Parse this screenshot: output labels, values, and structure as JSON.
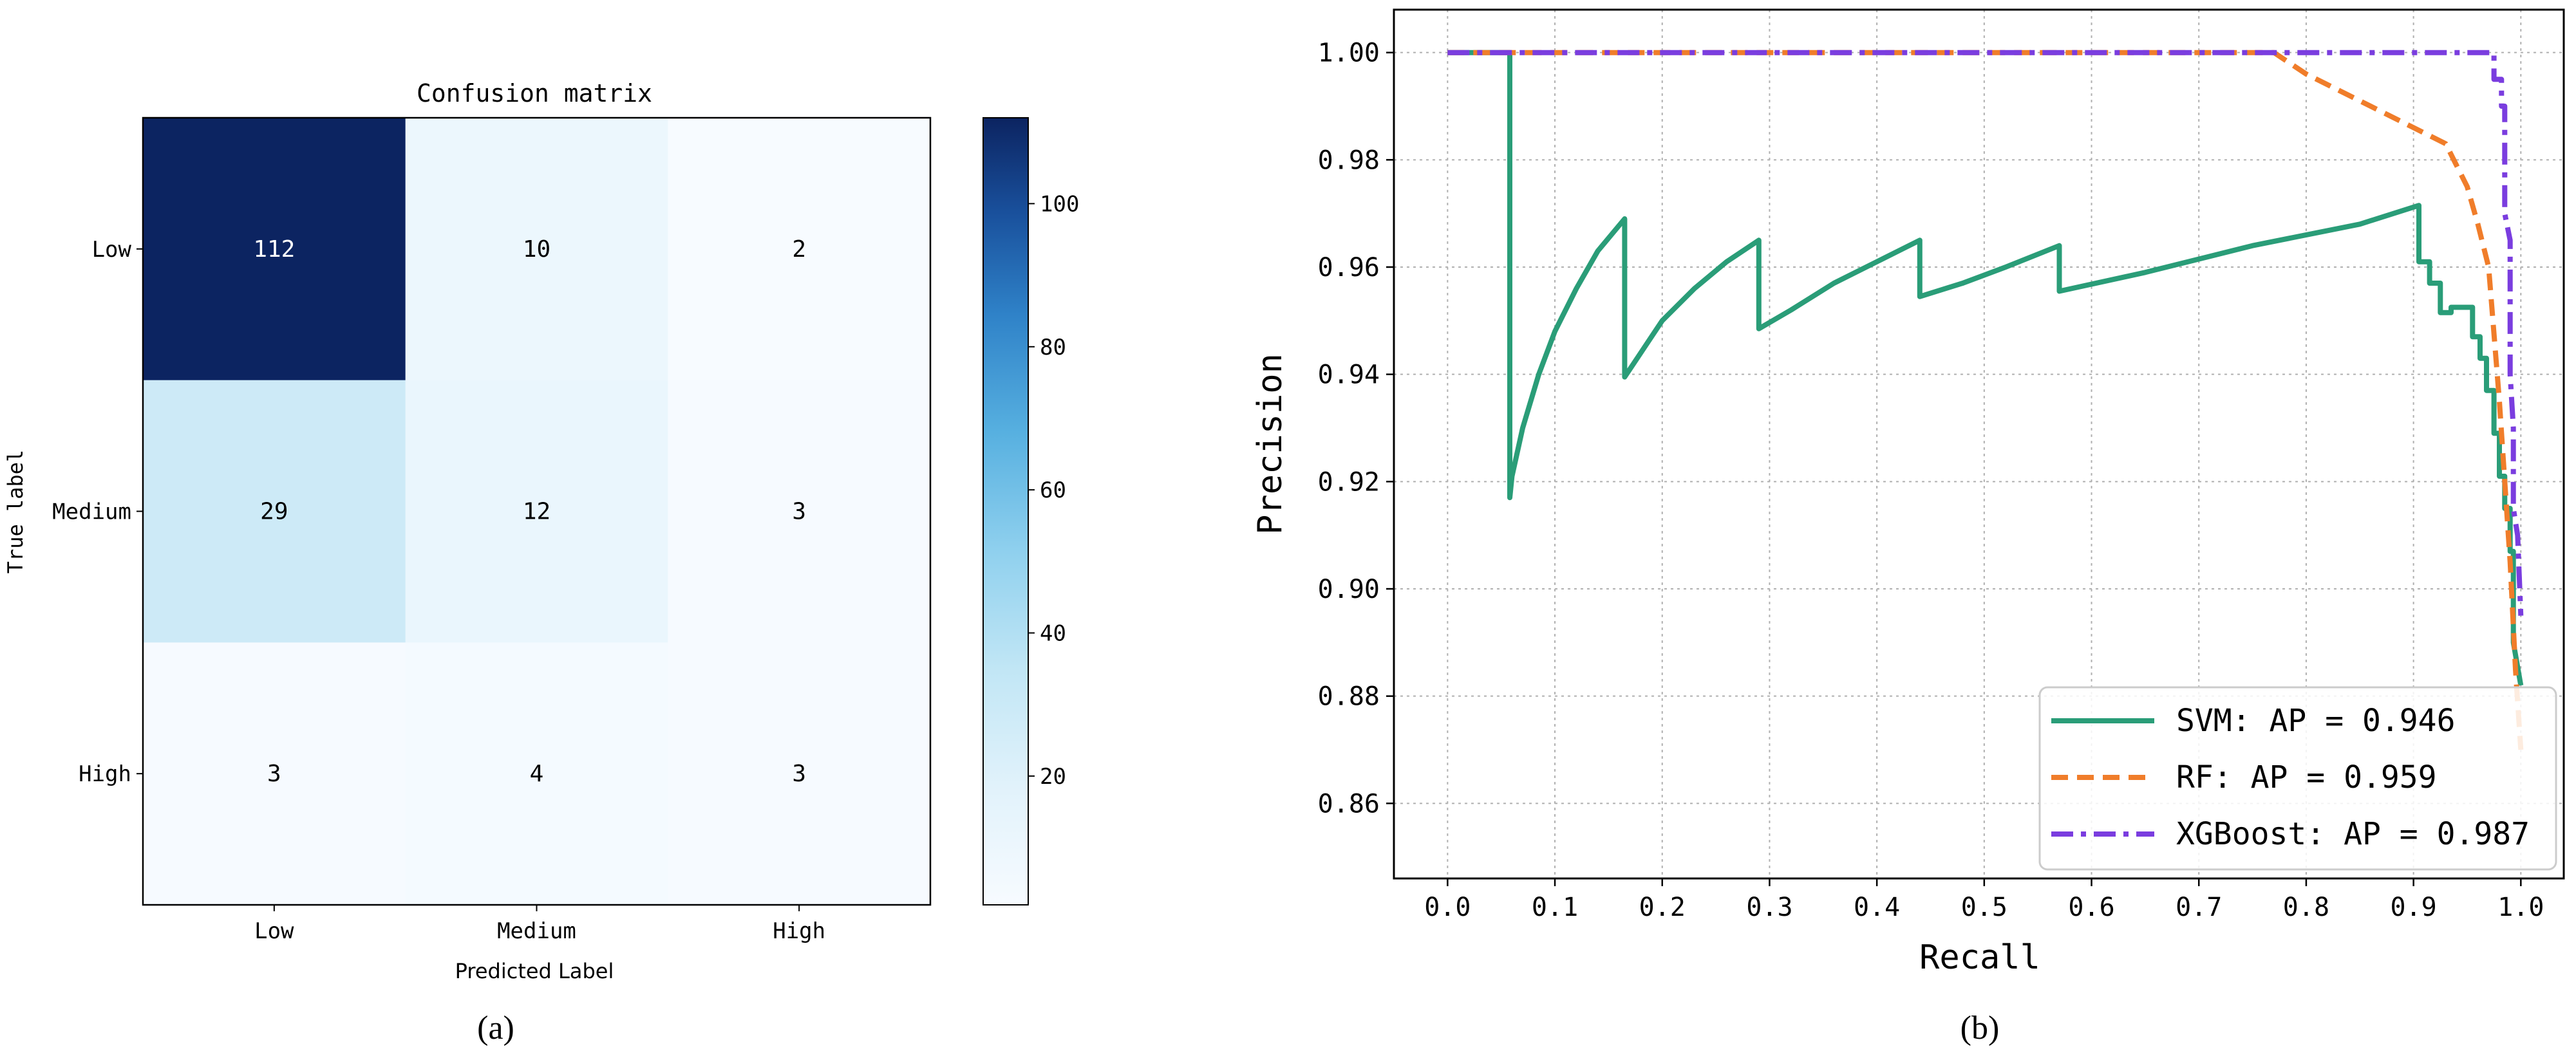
{
  "chart_data": [
    {
      "type": "heatmap",
      "panel_label": "(a)",
      "title": "Confusion matrix",
      "xlabel": "Predicted Label",
      "ylabel": "True label",
      "x_categories": [
        "Low",
        "Medium",
        "High"
      ],
      "y_categories": [
        "Low",
        "Medium",
        "High"
      ],
      "values": [
        [
          112,
          10,
          2
        ],
        [
          29,
          12,
          3
        ],
        [
          3,
          4,
          3
        ]
      ],
      "colorbar": {
        "min": 2,
        "max": 112,
        "ticks": [
          20,
          40,
          60,
          80,
          100
        ],
        "colormap": "Blues"
      }
    },
    {
      "type": "line",
      "panel_label": "(b)",
      "xlabel": "Recall",
      "ylabel": "Precision",
      "xlim": [
        -0.05,
        1.04
      ],
      "ylim": [
        0.846,
        1.008
      ],
      "xticks": [
        0.0,
        0.1,
        0.2,
        0.3,
        0.4,
        0.5,
        0.6,
        0.7,
        0.8,
        0.9,
        1.0
      ],
      "yticks": [
        0.86,
        0.88,
        0.9,
        0.92,
        0.94,
        0.96,
        0.98,
        1.0
      ],
      "xtick_labels": [
        "0.0",
        "0.1",
        "0.2",
        "0.3",
        "0.4",
        "0.5",
        "0.6",
        "0.7",
        "0.8",
        "0.9",
        "1.0"
      ],
      "ytick_labels": [
        "0.86",
        "0.88",
        "0.90",
        "0.92",
        "0.94",
        "0.96",
        "0.98",
        "1.00"
      ],
      "grid": true,
      "legend_position": "lower-right",
      "series": [
        {
          "name": "SVM: AP = 0.946",
          "color": "#2a9d78",
          "dash": "solid",
          "x": [
            0.0,
            0.058,
            0.058,
            0.06,
            0.07,
            0.085,
            0.1,
            0.12,
            0.14,
            0.165,
            0.165,
            0.18,
            0.2,
            0.23,
            0.26,
            0.29,
            0.29,
            0.32,
            0.36,
            0.4,
            0.44,
            0.44,
            0.48,
            0.52,
            0.57,
            0.57,
            0.65,
            0.75,
            0.85,
            0.905,
            0.905,
            0.915,
            0.915,
            0.925,
            0.925,
            0.935,
            0.935,
            0.955,
            0.955,
            0.962,
            0.962,
            0.968,
            0.968,
            0.975,
            0.975,
            0.98,
            0.98,
            0.985,
            0.985,
            0.99,
            0.99,
            0.993,
            0.993,
            1.0
          ],
          "y": [
            1.0,
            1.0,
            0.917,
            0.921,
            0.93,
            0.94,
            0.948,
            0.956,
            0.963,
            0.969,
            0.9395,
            0.944,
            0.95,
            0.956,
            0.961,
            0.965,
            0.9485,
            0.952,
            0.957,
            0.961,
            0.965,
            0.9545,
            0.957,
            0.96,
            0.964,
            0.9555,
            0.959,
            0.964,
            0.968,
            0.9715,
            0.961,
            0.961,
            0.957,
            0.957,
            0.9515,
            0.9515,
            0.9525,
            0.9525,
            0.947,
            0.947,
            0.943,
            0.943,
            0.937,
            0.937,
            0.929,
            0.929,
            0.921,
            0.921,
            0.915,
            0.915,
            0.907,
            0.907,
            0.89,
            0.882
          ]
        },
        {
          "name": "RF: AP = 0.959",
          "color": "#f07d2a",
          "dash": "dashed",
          "x": [
            0.0,
            0.77,
            0.8,
            0.84,
            0.88,
            0.91,
            0.93,
            0.95,
            0.96,
            0.97,
            0.98,
            0.99,
            0.995,
            1.0
          ],
          "y": [
            1.0,
            1.0,
            0.996,
            0.992,
            0.988,
            0.985,
            0.983,
            0.975,
            0.968,
            0.96,
            0.935,
            0.905,
            0.885,
            0.87
          ]
        },
        {
          "name": "XGBoost: AP = 0.987",
          "color": "#7a3ddf",
          "dash": "dashdot",
          "x": [
            0.0,
            0.975,
            0.975,
            0.982,
            0.982,
            0.985,
            0.985,
            0.99,
            0.99,
            0.993,
            0.993,
            0.997,
            1.0
          ],
          "y": [
            1.0,
            1.0,
            0.995,
            0.995,
            0.99,
            0.99,
            0.97,
            0.965,
            0.94,
            0.93,
            0.915,
            0.91,
            0.895
          ]
        }
      ]
    }
  ]
}
